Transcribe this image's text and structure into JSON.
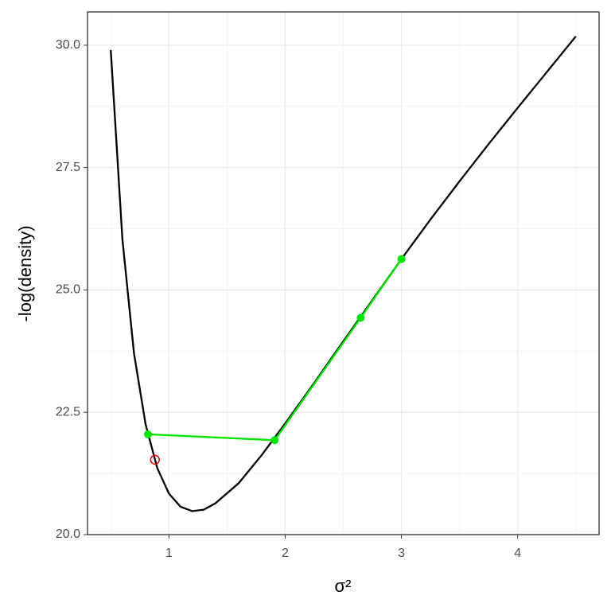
{
  "chart_data": {
    "type": "line",
    "x_label": "σ²",
    "y_label": "-log(density)",
    "xlim": [
      0.3,
      4.7
    ],
    "ylim": [
      20,
      30.68
    ],
    "xticks": [
      1,
      2,
      3,
      4
    ],
    "yticks": [
      {
        "value": 20,
        "label": "20.0"
      },
      {
        "value": 22.5,
        "label": "22.5"
      },
      {
        "value": 25,
        "label": "25.0"
      },
      {
        "value": 27.5,
        "label": "27.5"
      },
      {
        "value": 30,
        "label": "30.0"
      }
    ],
    "grid": true,
    "series": [
      {
        "color": "#000000",
        "style": "line",
        "x": [
          0.5,
          0.6,
          0.7,
          0.8,
          0.9,
          1.0,
          1.1,
          1.2,
          1.3,
          1.4,
          1.6,
          1.8,
          2.0,
          2.25,
          2.5,
          2.75,
          3.0,
          3.25,
          3.5,
          3.75,
          4.0,
          4.25,
          4.5
        ],
        "values": [
          29.9,
          26.04,
          23.7,
          22.25,
          21.36,
          20.84,
          20.57,
          20.48,
          20.51,
          20.64,
          21.05,
          21.63,
          22.27,
          23.1,
          23.95,
          24.79,
          25.63,
          26.44,
          27.22,
          27.98,
          28.72,
          29.45,
          30.18
        ]
      },
      {
        "color": "#00e600",
        "style": "line-points",
        "x": [
          0.82,
          1.91,
          2.65,
          3.0
        ],
        "values": [
          22.05,
          21.93,
          24.43,
          25.63
        ]
      },
      {
        "color": "#e60000",
        "style": "open-point",
        "x": [
          0.88
        ],
        "values": [
          21.53
        ]
      }
    ]
  }
}
